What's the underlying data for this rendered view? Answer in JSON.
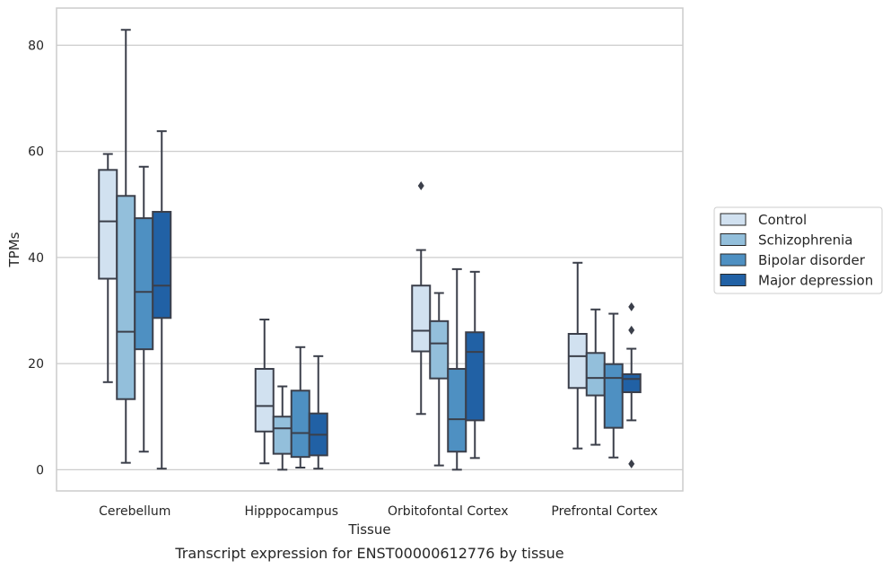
{
  "chart_data": {
    "type": "box",
    "xlabel": "Tissue",
    "ylabel": "TPMs",
    "caption": "Transcript expression for ENST00000612776 by tissue",
    "ylim": [
      -4,
      87
    ],
    "yticks": [
      0,
      20,
      40,
      60,
      80
    ],
    "grid": "horizontal",
    "legend_position": "right",
    "categories": [
      "Cerebellum",
      "Hipppocampus",
      "Orbitofontal Cortex",
      "Prefrontal Cortex"
    ],
    "series": [
      {
        "name": "Control",
        "color": "#d1e1f0",
        "boxes": [
          {
            "whislo": 16.5,
            "q1": 36,
            "med": 46.8,
            "q3": 56.5,
            "whishi": 59.5,
            "fliers": []
          },
          {
            "whislo": 1.2,
            "q1": 7.2,
            "med": 12,
            "q3": 19,
            "whishi": 28.3,
            "fliers": []
          },
          {
            "whislo": 10.5,
            "q1": 22.3,
            "med": 26.2,
            "q3": 34.7,
            "whishi": 41.4,
            "fliers": [
              53.5
            ]
          },
          {
            "whislo": 4,
            "q1": 15.4,
            "med": 21.4,
            "q3": 25.6,
            "whishi": 39,
            "fliers": []
          }
        ]
      },
      {
        "name": "Schizophrenia",
        "color": "#93bfdb",
        "boxes": [
          {
            "whislo": 1.3,
            "q1": 13.3,
            "med": 26,
            "q3": 51.6,
            "whishi": 82.9,
            "fliers": []
          },
          {
            "whislo": 0,
            "q1": 3,
            "med": 7.8,
            "q3": 10,
            "whishi": 15.7,
            "fliers": []
          },
          {
            "whislo": 0.8,
            "q1": 17.2,
            "med": 23.8,
            "q3": 28,
            "whishi": 33.3,
            "fliers": []
          },
          {
            "whislo": 4.7,
            "q1": 14,
            "med": 17.3,
            "q3": 22,
            "whishi": 30.2,
            "fliers": []
          }
        ]
      },
      {
        "name": "Bipolar disorder",
        "color": "#4e90c2",
        "boxes": [
          {
            "whislo": 3.4,
            "q1": 22.7,
            "med": 33.5,
            "q3": 47.4,
            "whishi": 57.1,
            "fliers": []
          },
          {
            "whislo": 0.4,
            "q1": 2.4,
            "med": 6.9,
            "q3": 14.9,
            "whishi": 23.1,
            "fliers": []
          },
          {
            "whislo": 0,
            "q1": 3.4,
            "med": 9.5,
            "q3": 19,
            "whishi": 37.8,
            "fliers": []
          },
          {
            "whislo": 2.3,
            "q1": 7.9,
            "med": 17.3,
            "q3": 19.9,
            "whishi": 29.4,
            "fliers": []
          }
        ]
      },
      {
        "name": "Major depression",
        "color": "#2161a5",
        "boxes": [
          {
            "whislo": 0.2,
            "q1": 28.6,
            "med": 34.7,
            "q3": 48.6,
            "whishi": 63.8,
            "fliers": []
          },
          {
            "whislo": 0.2,
            "q1": 2.7,
            "med": 6.6,
            "q3": 10.6,
            "whishi": 21.4,
            "fliers": []
          },
          {
            "whislo": 2.2,
            "q1": 9.3,
            "med": 22.2,
            "q3": 25.9,
            "whishi": 37.3,
            "fliers": []
          },
          {
            "whislo": 9.3,
            "q1": 14.6,
            "med": 17.1,
            "q3": 18,
            "whishi": 22.8,
            "fliers": [
              30.7,
              26.3,
              1.1
            ]
          }
        ]
      }
    ]
  },
  "colors": {
    "frame": "#cccccc",
    "grid": "#cccccc",
    "box_edge": "#3b3f4a"
  }
}
